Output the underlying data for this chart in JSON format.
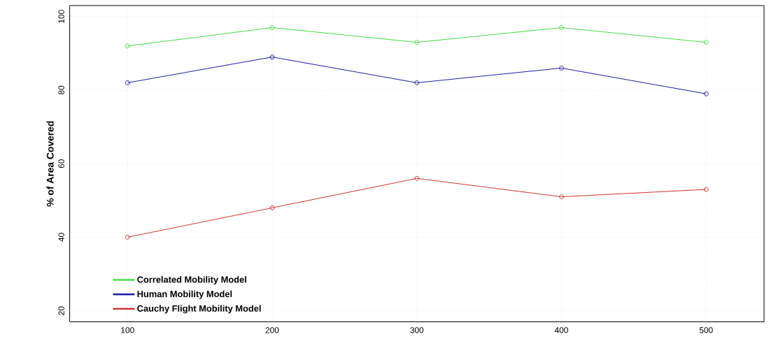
{
  "chart_data": {
    "type": "line",
    "ylabel": "% of Area Covered",
    "x": [
      100,
      200,
      300,
      400,
      500
    ],
    "series": [
      {
        "name": "Correlated Mobility Model",
        "color": "#44dd44",
        "values": [
          92,
          97,
          93,
          97,
          93
        ]
      },
      {
        "name": "Human Mobility Model",
        "color": "#1a1aa0",
        "values": [
          82,
          89,
          82,
          86,
          79
        ]
      },
      {
        "name": "Cauchy Flight Mobility Model",
        "color": "#cc3333",
        "values": [
          40,
          48,
          56,
          51,
          53
        ]
      }
    ],
    "xlim": [
      60,
      540
    ],
    "ylim": [
      17,
      103
    ],
    "xticks": [
      100,
      200,
      300,
      400,
      500
    ],
    "yticks": [
      20,
      40,
      60,
      80,
      100
    ],
    "grid": true,
    "legend": "bottom left",
    "marker": "circle",
    "line_style": "solid"
  }
}
